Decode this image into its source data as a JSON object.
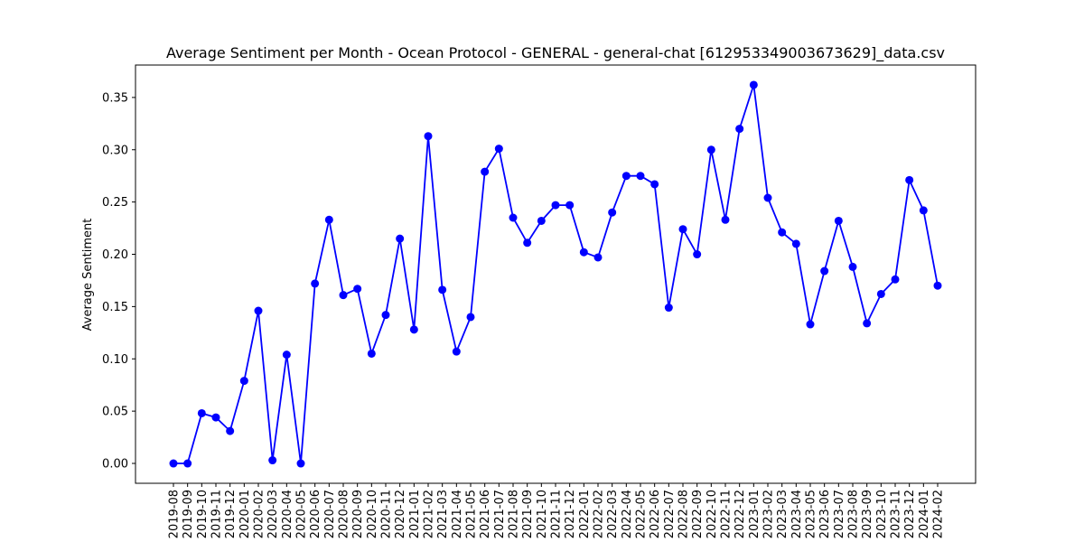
{
  "chart_data": {
    "type": "line",
    "title": "Average Sentiment per Month - Ocean Protocol - GENERAL - general-chat [612953349003673629]_data.csv",
    "xlabel": "",
    "ylabel": "Average Sentiment",
    "ylim": [
      -0.019,
      0.381
    ],
    "yticks": [
      0.0,
      0.05,
      0.1,
      0.15,
      0.2,
      0.25,
      0.3,
      0.35
    ],
    "ytick_labels": [
      "0.00",
      "0.05",
      "0.10",
      "0.15",
      "0.20",
      "0.25",
      "0.30",
      "0.35"
    ],
    "grid": false,
    "line_color": "#0000ff",
    "marker": "circle",
    "categories": [
      "2019-08",
      "2019-09",
      "2019-10",
      "2019-11",
      "2019-12",
      "2020-01",
      "2020-02",
      "2020-03",
      "2020-04",
      "2020-05",
      "2020-06",
      "2020-07",
      "2020-08",
      "2020-09",
      "2020-10",
      "2020-11",
      "2020-12",
      "2021-01",
      "2021-02",
      "2021-03",
      "2021-04",
      "2021-05",
      "2021-06",
      "2021-07",
      "2021-08",
      "2021-09",
      "2021-10",
      "2021-11",
      "2021-12",
      "2022-01",
      "2022-02",
      "2022-03",
      "2022-04",
      "2022-05",
      "2022-06",
      "2022-07",
      "2022-08",
      "2022-09",
      "2022-10",
      "2022-11",
      "2022-12",
      "2023-01",
      "2023-02",
      "2023-03",
      "2023-04",
      "2023-05",
      "2023-06",
      "2023-07",
      "2023-08",
      "2023-09",
      "2023-10",
      "2023-11",
      "2023-12",
      "2024-01",
      "2024-02"
    ],
    "values": [
      0.0,
      0.0,
      0.048,
      0.044,
      0.031,
      0.079,
      0.146,
      0.003,
      0.104,
      0.0,
      0.172,
      0.233,
      0.161,
      0.167,
      0.105,
      0.142,
      0.215,
      0.128,
      0.313,
      0.166,
      0.107,
      0.14,
      0.279,
      0.301,
      0.235,
      0.211,
      0.232,
      0.247,
      0.247,
      0.202,
      0.197,
      0.24,
      0.275,
      0.275,
      0.267,
      0.149,
      0.224,
      0.2,
      0.3,
      0.233,
      0.32,
      0.362,
      0.254,
      0.221,
      0.21,
      0.133,
      0.184,
      0.232,
      0.188,
      0.134,
      0.162,
      0.176,
      0.271,
      0.242,
      0.17
    ]
  }
}
